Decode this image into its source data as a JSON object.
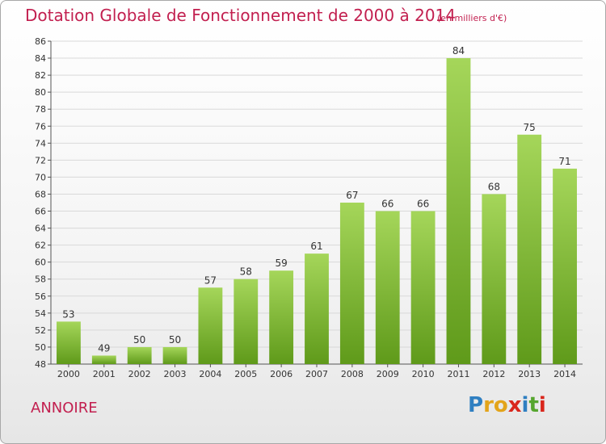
{
  "title": "Dotation Globale de Fonctionnement de 2000 à 2014",
  "subtitle": "(en milliers d'€)",
  "place": "ANNOIRE",
  "logo": {
    "letters": [
      "P",
      "r",
      "o",
      "x",
      "i",
      "t",
      "i"
    ],
    "colors": [
      "#2f7fc1",
      "#e3a41a",
      "#e3a41a",
      "#d9261c",
      "#2f7fc1",
      "#56a62f",
      "#d9261c"
    ]
  },
  "colors": {
    "bar_light": "#a5d65a",
    "bar_dark": "#5f9a1a",
    "title": "#c21f4f"
  },
  "chart_data": {
    "type": "bar",
    "categories": [
      "2000",
      "2001",
      "2002",
      "2003",
      "2004",
      "2005",
      "2006",
      "2007",
      "2008",
      "2009",
      "2010",
      "2011",
      "2012",
      "2013",
      "2014"
    ],
    "values": [
      53,
      49,
      50,
      50,
      57,
      58,
      59,
      61,
      67,
      66,
      66,
      84,
      68,
      75,
      71
    ],
    "ylim": [
      48,
      86
    ],
    "yticks": [
      48,
      50,
      52,
      54,
      56,
      58,
      60,
      62,
      64,
      66,
      68,
      70,
      72,
      74,
      76,
      78,
      80,
      82,
      84,
      86
    ],
    "xlabel": "",
    "ylabel": "",
    "grid": true
  }
}
